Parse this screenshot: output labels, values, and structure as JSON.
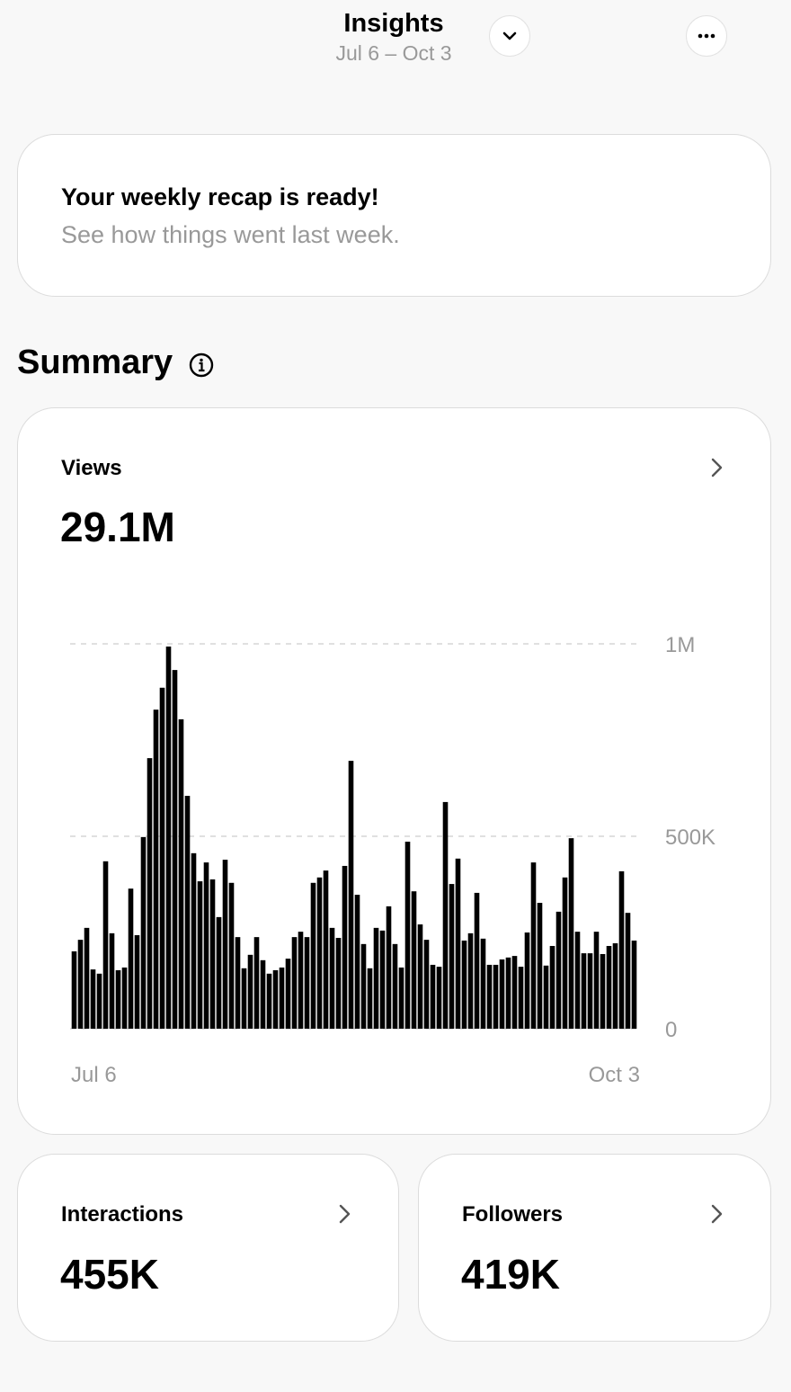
{
  "header": {
    "title": "Insights",
    "date_range": "Jul 6 – Oct 3"
  },
  "recap": {
    "title": "Your weekly recap is ready!",
    "subtitle": "See how things went last week."
  },
  "summary": {
    "title": "Summary",
    "views": {
      "label": "Views",
      "value": "29.1M"
    },
    "interactions": {
      "label": "Interactions",
      "value": "455K"
    },
    "followers": {
      "label": "Followers",
      "value": "419K"
    }
  },
  "chart_data": {
    "type": "bar",
    "color": "#000000",
    "grid": true,
    "categories": [
      "Jul 6",
      null,
      null,
      null,
      null,
      null,
      null,
      null,
      null,
      null,
      null,
      null,
      null,
      null,
      null,
      null,
      null,
      null,
      null,
      null,
      null,
      null,
      null,
      null,
      null,
      null,
      null,
      null,
      null,
      null,
      null,
      null,
      null,
      null,
      null,
      null,
      null,
      null,
      null,
      null,
      null,
      null,
      null,
      null,
      null,
      null,
      null,
      null,
      null,
      null,
      null,
      null,
      null,
      null,
      null,
      null,
      null,
      null,
      null,
      null,
      null,
      null,
      null,
      null,
      null,
      null,
      null,
      null,
      null,
      null,
      null,
      null,
      null,
      null,
      null,
      null,
      null,
      null,
      null,
      null,
      null,
      null,
      null,
      null,
      null,
      null,
      null,
      null,
      null,
      "Oct 3"
    ],
    "values": [
      201000,
      231000,
      262000,
      154000,
      143000,
      435000,
      248000,
      152000,
      159000,
      364000,
      243000,
      498000,
      703000,
      829000,
      886000,
      993000,
      932000,
      804000,
      605000,
      456000,
      383000,
      432000,
      388000,
      290000,
      439000,
      379000,
      238000,
      157000,
      192000,
      238000,
      178000,
      143000,
      152000,
      159000,
      182000,
      238000,
      252000,
      238000,
      379000,
      393000,
      411000,
      262000,
      236000,
      423000,
      696000,
      348000,
      220000,
      157000,
      262000,
      255000,
      318000,
      220000,
      159000,
      486000,
      357000,
      271000,
      231000,
      166000,
      161000,
      589000,
      376000,
      442000,
      229000,
      248000,
      353000,
      234000,
      166000,
      166000,
      180000,
      185000,
      189000,
      161000,
      250000,
      432000,
      327000,
      164000,
      215000,
      304000,
      393000,
      495000,
      252000,
      196000,
      196000,
      252000,
      194000,
      215000,
      222000,
      409000,
      301000,
      229000
    ],
    "ylim": [
      0,
      1000000
    ],
    "yticks": [
      0,
      {
        "value": 500000,
        "label": "500K"
      },
      {
        "value": 1000000,
        "label": "1M"
      }
    ]
  }
}
